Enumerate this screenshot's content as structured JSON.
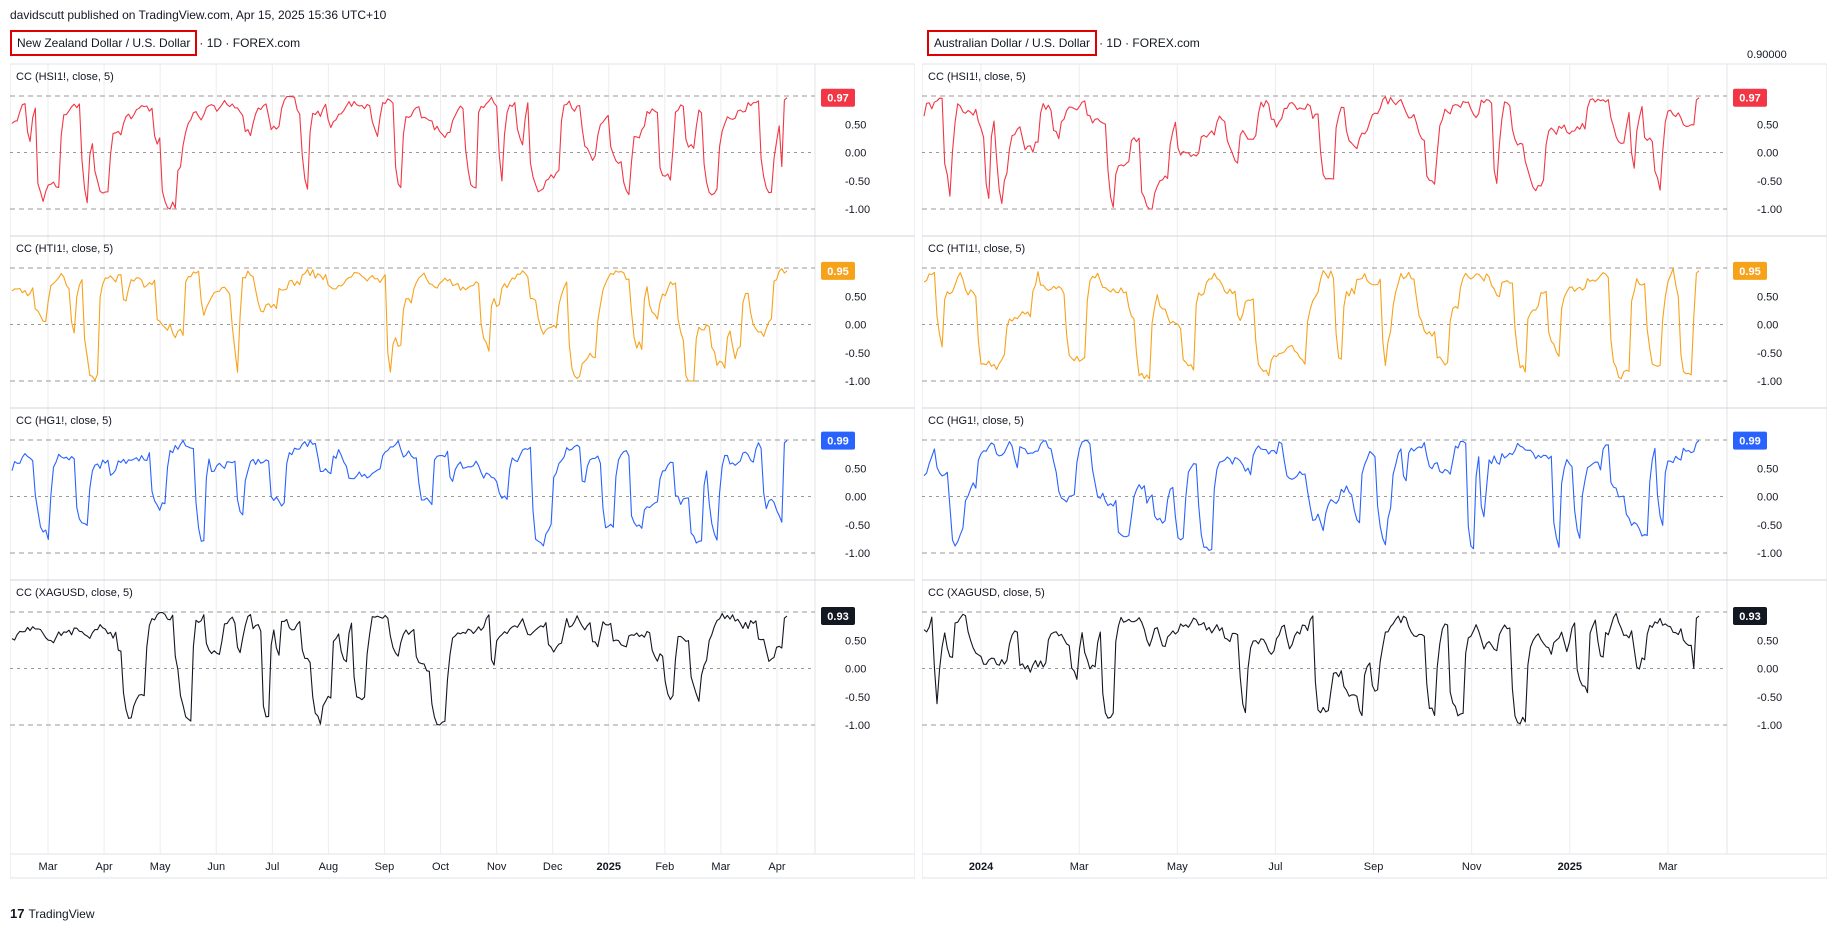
{
  "header": {
    "text": "davidscutt published on TradingView.com, Apr 15, 2025 15:36 UTC+10"
  },
  "footer": {
    "brand": "TradingView",
    "logo_glyph": "17"
  },
  "colors": {
    "hsi": "#f23645",
    "hti": "#f7a21b",
    "hg": "#2962ff",
    "xag": "#131722",
    "grid": "#ededed",
    "dash": "#9a9a9a"
  },
  "panels": [
    {
      "key": "nzd",
      "title_boxed": "New Zealand Dollar / U.S. Dollar",
      "title_rest": "· 1D · FOREX.com",
      "price_label": "",
      "x_labels": [
        "Mar",
        "Apr",
        "May",
        "Jun",
        "Jul",
        "Aug",
        "Sep",
        "Oct",
        "Nov",
        "Dec",
        "2025",
        "Feb",
        "Mar",
        "Apr"
      ]
    },
    {
      "key": "aud",
      "title_boxed": "Australian Dollar / U.S. Dollar",
      "title_rest": "· 1D · FOREX.com",
      "price_label": "0.90000",
      "x_labels": [
        "2024",
        "Mar",
        "May",
        "Jul",
        "Sep",
        "Nov",
        "2025",
        "Mar"
      ]
    }
  ],
  "chart_data": [
    {
      "type": "line",
      "title": "New Zealand Dollar / U.S. Dollar · 1D · FOREX.com",
      "yticks": [
        "0.50",
        "0.00",
        "-0.50",
        "-1.00"
      ],
      "series": [
        {
          "name": "CC (HSI1!, close, 5)",
          "color_key": "hsi",
          "last": "0.97",
          "last_value": 0.97,
          "seed": 11
        },
        {
          "name": "CC (HTI1!, close, 5)",
          "color_key": "hti",
          "last": "0.95",
          "last_value": 0.95,
          "seed": 23
        },
        {
          "name": "CC (HG1!, close, 5)",
          "color_key": "hg",
          "last": "0.99",
          "last_value": 0.99,
          "seed": 37
        },
        {
          "name": "CC (XAGUSD, close, 5)",
          "color_key": "xag",
          "last": "0.93",
          "last_value": 0.93,
          "seed": 53
        }
      ]
    },
    {
      "type": "line",
      "title": "Australian Dollar / U.S. Dollar · 1D · FOREX.com",
      "yticks": [
        "0.50",
        "0.00",
        "-0.50",
        "-1.00"
      ],
      "series": [
        {
          "name": "CC (HSI1!, close, 5)",
          "color_key": "hsi",
          "last": "0.97",
          "last_value": 0.97,
          "seed": 71
        },
        {
          "name": "CC (HTI1!, close, 5)",
          "color_key": "hti",
          "last": "0.95",
          "last_value": 0.95,
          "seed": 83
        },
        {
          "name": "CC (HG1!, close, 5)",
          "color_key": "hg",
          "last": "0.99",
          "last_value": 0.99,
          "seed": 97
        },
        {
          "name": "CC (XAGUSD, close, 5)",
          "color_key": "xag",
          "last": "0.93",
          "last_value": 0.93,
          "seed": 113
        }
      ]
    }
  ]
}
